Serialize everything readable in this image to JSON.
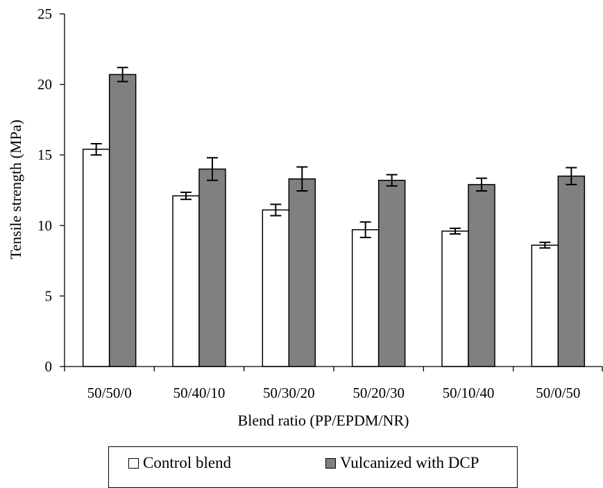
{
  "chart_data": {
    "type": "bar",
    "categories": [
      "50/50/0",
      "50/40/10",
      "50/30/20",
      "50/20/30",
      "50/10/40",
      "50/0/50"
    ],
    "series": [
      {
        "name": "Control blend",
        "color": "#ffffff",
        "values": [
          15.4,
          12.1,
          11.1,
          9.7,
          9.6,
          8.6
        ],
        "errors": [
          0.4,
          0.25,
          0.4,
          0.55,
          0.2,
          0.2
        ]
      },
      {
        "name": "Vulcanized with DCP",
        "color": "#808080",
        "values": [
          20.7,
          14.0,
          13.3,
          13.2,
          12.9,
          13.5
        ],
        "errors": [
          0.5,
          0.8,
          0.85,
          0.4,
          0.45,
          0.6
        ]
      }
    ],
    "title": "",
    "xlabel": "Blend ratio (PP/EPDM/NR)",
    "ylabel": "Tensile strength (MPa)",
    "ylim": [
      0,
      25
    ],
    "yticks": [
      "0",
      "5",
      "10",
      "15",
      "20",
      "25"
    ],
    "legend_position": "bottom",
    "grid": false
  }
}
